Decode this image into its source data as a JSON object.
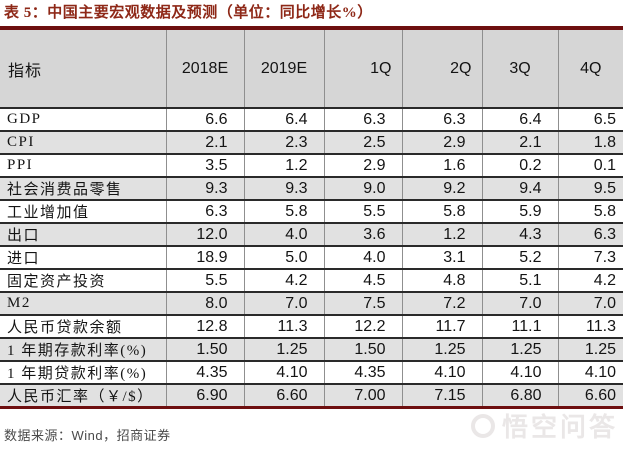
{
  "title": "表 5：中国主要宏观数据及预测（单位：同比增长%）",
  "table": {
    "columns": [
      "指标",
      "2018E",
      "2019E",
      "1Q",
      "2Q",
      "3Q",
      "4Q"
    ],
    "rows": [
      {
        "label": "GDP",
        "values": [
          "6.6",
          "6.4",
          "6.3",
          "6.3",
          "6.4",
          "6.5"
        ],
        "shaded": false
      },
      {
        "label": "CPI",
        "values": [
          "2.1",
          "2.3",
          "2.5",
          "2.9",
          "2.1",
          "1.8"
        ],
        "shaded": true
      },
      {
        "label": "PPI",
        "values": [
          "3.5",
          "1.2",
          "2.9",
          "1.6",
          "0.2",
          "0.1"
        ],
        "shaded": false
      },
      {
        "label": "社会消费品零售",
        "values": [
          "9.3",
          "9.3",
          "9.0",
          "9.2",
          "9.4",
          "9.5"
        ],
        "shaded": true
      },
      {
        "label": "工业增加值",
        "values": [
          "6.3",
          "5.8",
          "5.5",
          "5.8",
          "5.9",
          "5.8"
        ],
        "shaded": false
      },
      {
        "label": "出口",
        "values": [
          "12.0",
          "4.0",
          "3.6",
          "1.2",
          "4.3",
          "6.3"
        ],
        "shaded": true
      },
      {
        "label": "进口",
        "values": [
          "18.9",
          "5.0",
          "4.0",
          "3.1",
          "5.2",
          "7.3"
        ],
        "shaded": false
      },
      {
        "label": "固定资产投资",
        "values": [
          "5.5",
          "4.2",
          "4.5",
          "4.8",
          "5.1",
          "4.2"
        ],
        "shaded": false
      },
      {
        "label": "M2",
        "values": [
          "8.0",
          "7.0",
          "7.5",
          "7.2",
          "7.0",
          "7.0"
        ],
        "shaded": true
      },
      {
        "label": "人民币贷款余额",
        "values": [
          "12.8",
          "11.3",
          "12.2",
          "11.7",
          "11.1",
          "11.3"
        ],
        "shaded": false
      },
      {
        "label": "1 年期存款利率(%)",
        "values": [
          "1.50",
          "1.25",
          "1.50",
          "1.25",
          "1.25",
          "1.25"
        ],
        "shaded": true
      },
      {
        "label": "1 年期贷款利率(%)",
        "values": [
          "4.35",
          "4.10",
          "4.35",
          "4.10",
          "4.10",
          "4.10"
        ],
        "shaded": false
      },
      {
        "label": "人民币汇率（￥/$）",
        "values": [
          "6.90",
          "6.60",
          "7.00",
          "7.15",
          "6.80",
          "6.60"
        ],
        "shaded": true
      }
    ]
  },
  "footer": {
    "source": "数据来源：Wind，招商证券"
  },
  "watermark": {
    "text": "悟空问答"
  },
  "colors": {
    "title_red": "#8e2817",
    "rule_red": "#6e0f10",
    "header_gray": "#d6d6d6",
    "row_alt_gray": "#e1e1e1",
    "row_border": "#2a2a2a",
    "column_border": "#8f8f8f",
    "watermark_gray": "#eae7e7"
  }
}
